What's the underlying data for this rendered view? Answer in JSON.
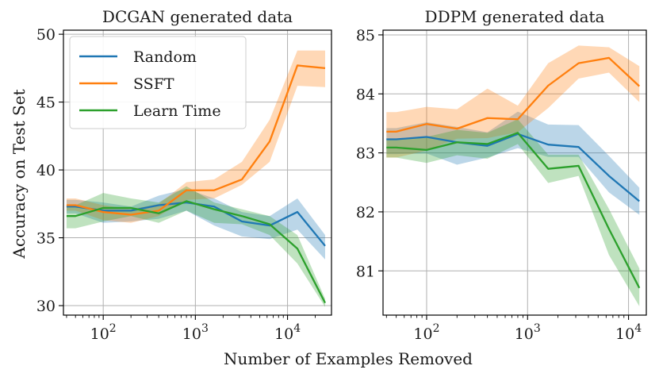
{
  "xlabel": "Number of Examples Removed",
  "ylabel": "Accuracy on Test Set",
  "colors": {
    "random": "#1f77b4",
    "ssft": "#ff7f0e",
    "learn_time": "#2ca02c",
    "grid": "#b0b0b0",
    "axis": "#000000"
  },
  "legend": {
    "placement": "upper-left of left panel",
    "entries": [
      "Random",
      "SSFT",
      "Learn Time"
    ]
  },
  "chart_data": [
    {
      "type": "line",
      "title": "DCGAN generated data",
      "xscale": "log",
      "xlim": [
        37,
        30000
      ],
      "ylim": [
        29.3,
        50.3
      ],
      "xticks": [
        100,
        1000,
        10000
      ],
      "xtick_labels": [
        {
          "base": "10",
          "exp": "2"
        },
        {
          "base": "10",
          "exp": "3"
        },
        {
          "base": "10",
          "exp": "4"
        }
      ],
      "yticks": [
        30,
        35,
        40,
        45,
        50
      ],
      "ytick_labels": [
        "30",
        "35",
        "40",
        "45",
        "50"
      ],
      "grid": true,
      "x": [
        40,
        50,
        100,
        200,
        400,
        800,
        1600,
        3200,
        6400,
        12800,
        25600
      ],
      "series": [
        {
          "name": "Random",
          "color_key": "random",
          "values": [
            37.3,
            37.3,
            37.0,
            37.0,
            37.4,
            37.6,
            37.3,
            36.2,
            35.9,
            36.9,
            34.4
          ],
          "lower": [
            36.8,
            36.8,
            36.1,
            36.2,
            36.4,
            37.0,
            35.9,
            35.1,
            34.9,
            35.6,
            33.4
          ],
          "upper": [
            37.8,
            37.8,
            37.6,
            37.3,
            38.1,
            38.6,
            37.9,
            36.9,
            36.6,
            37.9,
            35.2
          ]
        },
        {
          "name": "SSFT",
          "color_key": "ssft",
          "values": [
            37.4,
            37.4,
            36.9,
            36.7,
            37.0,
            38.5,
            38.5,
            39.3,
            42.1,
            47.7,
            47.5
          ],
          "lower": [
            37.0,
            37.0,
            36.3,
            36.1,
            36.6,
            37.8,
            37.9,
            38.9,
            40.6,
            46.2,
            46.1
          ],
          "upper": [
            37.9,
            37.9,
            37.4,
            37.1,
            37.5,
            39.1,
            39.3,
            40.6,
            43.7,
            48.8,
            48.8
          ]
        },
        {
          "name": "Learn Time",
          "color_key": "learn_time",
          "values": [
            36.6,
            36.6,
            37.2,
            37.2,
            36.8,
            37.7,
            37.1,
            36.6,
            36.0,
            34.2,
            30.2
          ],
          "lower": [
            35.7,
            35.7,
            36.2,
            36.6,
            36.1,
            37.0,
            36.1,
            36.0,
            35.2,
            33.1,
            29.9
          ],
          "upper": [
            37.4,
            37.4,
            38.3,
            37.9,
            37.6,
            38.8,
            37.6,
            37.1,
            36.6,
            35.2,
            30.5
          ]
        }
      ]
    },
    {
      "type": "line",
      "title": "DDPM generated data",
      "xscale": "log",
      "xlim": [
        37,
        15000
      ],
      "ylim": [
        80.25,
        85.08
      ],
      "xticks": [
        100,
        1000,
        10000
      ],
      "xtick_labels": [
        {
          "base": "10",
          "exp": "2"
        },
        {
          "base": "10",
          "exp": "3"
        },
        {
          "base": "10",
          "exp": "4"
        }
      ],
      "yticks": [
        81,
        82,
        83,
        84,
        85
      ],
      "ytick_labels": [
        "81",
        "82",
        "83",
        "84",
        "85"
      ],
      "grid": true,
      "x": [
        40,
        50,
        100,
        200,
        400,
        800,
        1600,
        3200,
        6400,
        12800
      ],
      "series": [
        {
          "name": "Random",
          "color_key": "random",
          "values": [
            83.23,
            83.23,
            83.27,
            83.18,
            83.12,
            83.32,
            83.14,
            83.1,
            82.61,
            82.18
          ],
          "lower": [
            82.98,
            82.98,
            82.99,
            82.8,
            82.92,
            83.08,
            82.93,
            82.93,
            82.33,
            81.95
          ],
          "upper": [
            83.42,
            83.42,
            83.52,
            83.44,
            83.35,
            83.7,
            83.48,
            83.47,
            82.95,
            82.41
          ]
        },
        {
          "name": "SSFT",
          "color_key": "ssft",
          "values": [
            83.36,
            83.36,
            83.49,
            83.41,
            83.59,
            83.57,
            84.14,
            84.52,
            84.61,
            84.13
          ],
          "lower": [
            82.92,
            82.92,
            83.04,
            83.24,
            83.25,
            83.35,
            83.76,
            84.26,
            84.36,
            83.86
          ],
          "upper": [
            83.69,
            83.69,
            83.78,
            83.74,
            84.09,
            83.8,
            84.52,
            84.82,
            84.79,
            84.47
          ]
        },
        {
          "name": "Learn Time",
          "color_key": "learn_time",
          "values": [
            83.09,
            83.09,
            83.05,
            83.18,
            83.15,
            83.34,
            82.73,
            82.78,
            81.71,
            80.71
          ],
          "lower": [
            82.92,
            82.92,
            82.83,
            82.96,
            82.9,
            83.15,
            82.49,
            82.61,
            81.27,
            80.4
          ],
          "upper": [
            83.24,
            83.24,
            83.27,
            83.39,
            83.34,
            83.57,
            82.97,
            82.97,
            82.05,
            81.04
          ]
        }
      ]
    }
  ]
}
